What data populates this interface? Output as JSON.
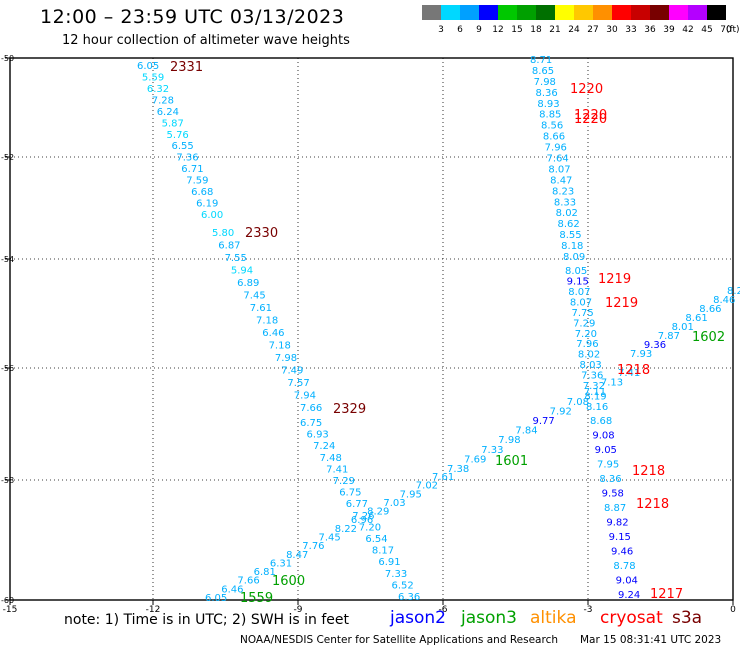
{
  "title": "12:00 – 23:59 UTC 03/13/2023",
  "subtitle": "12 hour collection of altimeter wave heights",
  "color_scale": {
    "labels": [
      "3",
      "6",
      "9",
      "12",
      "15",
      "18",
      "21",
      "24",
      "27",
      "30",
      "33",
      "36",
      "39",
      "42",
      "45",
      "70"
    ],
    "unit": "(ft)",
    "colors": [
      "#777777",
      "#00d8ff",
      "#00a0ff",
      "#0000ff",
      "#00c800",
      "#00a000",
      "#007000",
      "#ffff00",
      "#ffc800",
      "#ff9000",
      "#ff0000",
      "#c80000",
      "#780000",
      "#ff00ff",
      "#b400ff",
      "#000000"
    ]
  },
  "axes": {
    "x_ticks": [
      "-15",
      "-12",
      "-9",
      "-6",
      "-3",
      "0"
    ],
    "y_ticks": [
      "-50",
      "-52",
      "-54",
      "-56",
      "-58",
      "-60"
    ]
  },
  "tracks": [
    {
      "name": "track-2331",
      "time": "2331",
      "time_color": "#780000",
      "points": [
        [
          "6.05",
          "#00b0ff"
        ],
        [
          "5.59",
          "#00d8ff"
        ],
        [
          "6.32",
          "#00d8ff"
        ],
        [
          "7.28",
          "#00b0ff"
        ],
        [
          "6.24",
          "#00b0ff"
        ],
        [
          "5.87",
          "#00d8ff"
        ],
        [
          "5.76",
          "#00d8ff"
        ],
        [
          "6.55",
          "#00b0ff"
        ],
        [
          "7.36",
          "#00b0ff"
        ],
        [
          "6.71",
          "#00b0ff"
        ],
        [
          "7.59",
          "#00b0ff"
        ],
        [
          "6.68",
          "#00b0ff"
        ],
        [
          "6.19",
          "#00b0ff"
        ],
        [
          "6.00",
          "#00d8ff"
        ]
      ]
    },
    {
      "name": "track-2330",
      "time": "2330",
      "time_color": "#780000",
      "points": [
        [
          "5.80",
          "#00d8ff"
        ],
        [
          "6.87",
          "#00b0ff"
        ],
        [
          "7.55",
          "#00b0ff"
        ],
        [
          "5.94",
          "#00d8ff"
        ],
        [
          "6.89",
          "#00b0ff"
        ],
        [
          "7.45",
          "#00b0ff"
        ],
        [
          "7.61",
          "#00b0ff"
        ],
        [
          "7.18",
          "#00b0ff"
        ],
        [
          "6.46",
          "#00b0ff"
        ],
        [
          "7.18",
          "#00b0ff"
        ],
        [
          "7.98",
          "#00b0ff"
        ],
        [
          "7.49",
          "#00b0ff"
        ],
        [
          "7.57",
          "#00b0ff"
        ],
        [
          "7.94",
          "#00b0ff"
        ],
        [
          "7.66",
          "#00b0ff"
        ]
      ]
    },
    {
      "name": "track-2329",
      "time": "2329",
      "time_color": "#780000",
      "points": [
        [
          "6.75",
          "#00b0ff"
        ],
        [
          "6.93",
          "#00b0ff"
        ],
        [
          "7.24",
          "#00b0ff"
        ],
        [
          "7.48",
          "#00b0ff"
        ],
        [
          "7.41",
          "#00b0ff"
        ],
        [
          "7.29",
          "#00b0ff"
        ],
        [
          "6.75",
          "#00b0ff"
        ],
        [
          "6.77",
          "#00b0ff"
        ],
        [
          "7.26",
          "#00b0ff"
        ],
        [
          "7.20",
          "#00b0ff"
        ],
        [
          "6.54",
          "#00b0ff"
        ],
        [
          "8.17",
          "#00b0ff"
        ],
        [
          "6.91",
          "#00b0ff"
        ],
        [
          "7.33",
          "#00b0ff"
        ],
        [
          "6.52",
          "#00b0ff"
        ],
        [
          "6.36",
          "#00b0ff"
        ]
      ]
    },
    {
      "name": "track-1220",
      "time": "1220",
      "time_color": "#ff0000",
      "points": [
        [
          "8.71",
          "#00b0ff"
        ],
        [
          "8.65",
          "#00b0ff"
        ],
        [
          "7.98",
          "#00b0ff"
        ],
        [
          "8.36",
          "#00b0ff"
        ],
        [
          "8.93",
          "#00b0ff"
        ],
        [
          "8.85",
          "#00b0ff"
        ],
        [
          "8.56",
          "#00b0ff"
        ],
        [
          "8.66",
          "#00b0ff"
        ],
        [
          "7.96",
          "#00b0ff"
        ],
        [
          "7.64",
          "#00b0ff"
        ],
        [
          "8.07",
          "#00b0ff"
        ],
        [
          "8.47",
          "#00b0ff"
        ],
        [
          "8.23",
          "#00b0ff"
        ],
        [
          "8.33",
          "#00b0ff"
        ],
        [
          "8.02",
          "#00b0ff"
        ],
        [
          "8.62",
          "#00b0ff"
        ],
        [
          "8.55",
          "#00b0ff"
        ],
        [
          "8.18",
          "#00b0ff"
        ],
        [
          "8.09",
          "#00b0ff"
        ]
      ]
    },
    {
      "name": "track-1219",
      "time": "1219",
      "time_color": "#ff0000",
      "points": [
        [
          "8.05",
          "#00b0ff"
        ],
        [
          "9.15",
          "#0000ff"
        ],
        [
          "8.07",
          "#00b0ff"
        ],
        [
          "8.07",
          "#00b0ff"
        ],
        [
          "7.75",
          "#00b0ff"
        ],
        [
          "7.29",
          "#00b0ff"
        ],
        [
          "7.20",
          "#00b0ff"
        ],
        [
          "7.96",
          "#00b0ff"
        ],
        [
          "8.02",
          "#00b0ff"
        ],
        [
          "8.03",
          "#00b0ff"
        ],
        [
          "7.36",
          "#00b0ff"
        ],
        [
          "7.32",
          "#00b0ff"
        ],
        [
          "8.19",
          "#00b0ff"
        ],
        [
          "8.16",
          "#00b0ff"
        ]
      ]
    },
    {
      "name": "track-1218",
      "time": "1218",
      "time_color": "#ff0000",
      "points": [
        [
          "8.68",
          "#00b0ff"
        ],
        [
          "9.08",
          "#0000ff"
        ],
        [
          "9.05",
          "#0000ff"
        ],
        [
          "7.95",
          "#00b0ff"
        ],
        [
          "8.36",
          "#00b0ff"
        ],
        [
          "9.58",
          "#0000ff"
        ],
        [
          "8.87",
          "#00b0ff"
        ],
        [
          "9.82",
          "#0000ff"
        ],
        [
          "9.15",
          "#0000ff"
        ],
        [
          "9.46",
          "#0000ff"
        ],
        [
          "8.78",
          "#00b0ff"
        ],
        [
          "9.04",
          "#0000ff"
        ],
        [
          "9.24",
          "#0000ff"
        ]
      ]
    },
    {
      "name": "track-1559",
      "time": "1559",
      "time_color": "#00a000",
      "points": [
        [
          "6.05",
          "#00b0ff"
        ],
        [
          "6.46",
          "#00b0ff"
        ],
        [
          "7.66",
          "#00b0ff"
        ],
        [
          "6.81",
          "#00b0ff"
        ],
        [
          "6.31",
          "#00b0ff"
        ],
        [
          "8.47",
          "#00b0ff"
        ],
        [
          "7.76",
          "#00b0ff"
        ],
        [
          "7.45",
          "#00b0ff"
        ],
        [
          "8.22",
          "#00b0ff"
        ],
        [
          "6.96",
          "#00b0ff"
        ],
        [
          "8.29",
          "#00b0ff"
        ],
        [
          "7.03",
          "#00b0ff"
        ],
        [
          "7.95",
          "#00b0ff"
        ],
        [
          "7.02",
          "#00b0ff"
        ],
        [
          "7.61",
          "#00b0ff"
        ]
      ]
    },
    {
      "name": "track-1601",
      "time": "1601",
      "time_color": "#00a000",
      "points": [
        [
          "7.38",
          "#00b0ff"
        ],
        [
          "7.69",
          "#00b0ff"
        ],
        [
          "7.33",
          "#00b0ff"
        ],
        [
          "7.98",
          "#00b0ff"
        ],
        [
          "7.84",
          "#00b0ff"
        ],
        [
          "9.77",
          "#0000ff"
        ],
        [
          "7.92",
          "#00b0ff"
        ],
        [
          "7.08",
          "#00b0ff"
        ],
        [
          "7.11",
          "#00b0ff"
        ],
        [
          "7.13",
          "#00b0ff"
        ],
        [
          "7.41",
          "#00b0ff"
        ]
      ]
    },
    {
      "name": "track-1602",
      "time": "1602",
      "time_color": "#00a000",
      "points": [
        [
          "7.93",
          "#00b0ff"
        ],
        [
          "9.36",
          "#0000ff"
        ],
        [
          "7.87",
          "#00b0ff"
        ],
        [
          "8.01",
          "#00b0ff"
        ],
        [
          "8.61",
          "#00b0ff"
        ],
        [
          "8.66",
          "#00b0ff"
        ],
        [
          "8.46",
          "#00b0ff"
        ],
        [
          "8.2",
          "#00b0ff"
        ]
      ]
    }
  ],
  "extra_time_labels": [
    {
      "text": "1220",
      "color": "#ff0000"
    },
    {
      "text": "1220",
      "color": "#ff0000"
    },
    {
      "text": "1219",
      "color": "#ff0000"
    },
    {
      "text": "1218",
      "color": "#ff0000"
    },
    {
      "text": "1218",
      "color": "#ff0000"
    },
    {
      "text": "1217",
      "color": "#ff0000"
    },
    {
      "text": "1600",
      "color": "#00a000"
    }
  ],
  "footer": {
    "note": "note: 1) Time is in UTC; 2) SWH is in feet",
    "legend": [
      {
        "name": "jason2",
        "color": "#0000ff"
      },
      {
        "name": "jason3",
        "color": "#00a000"
      },
      {
        "name": "altika",
        "color": "#ff9000"
      },
      {
        "name": "cryosat",
        "color": "#ff0000"
      },
      {
        "name": "s3a",
        "color": "#780000"
      }
    ],
    "credit": "NOAA/NESDIS Center for Satellite Applications and Research",
    "timestamp": "Mar 15 08:31:41 UTC 2023"
  }
}
